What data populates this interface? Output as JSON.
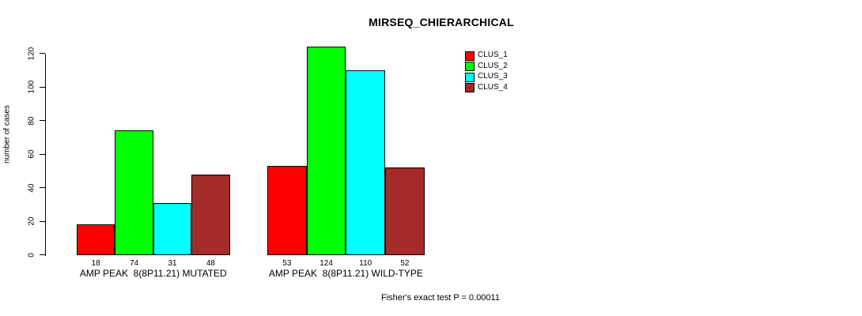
{
  "chart": {
    "title": "MIRSEQ_CHIERARCHICAL",
    "ylabel": "number of cases",
    "footnote": "Fisher's exact test P = 0.00011"
  },
  "chart_data": {
    "type": "bar",
    "title": "MIRSEQ_CHIERARCHICAL",
    "xlabel": "",
    "ylabel": "number of cases",
    "ylim": [
      0,
      120
    ],
    "yticks": [
      0,
      20,
      40,
      60,
      80,
      100,
      120
    ],
    "grid": false,
    "legend_position": "top-right",
    "categories": [
      "AMP PEAK  8(8P11.21) MUTATED",
      "AMP PEAK  8(8P11.21) WILD-TYPE"
    ],
    "series": [
      {
        "name": "CLUS_1",
        "color": "#FF0000",
        "values": [
          18,
          53
        ]
      },
      {
        "name": "CLUS_2",
        "color": "#00FF00",
        "values": [
          74,
          124
        ]
      },
      {
        "name": "CLUS_3",
        "color": "#00FFFF",
        "values": [
          31,
          110
        ]
      },
      {
        "name": "CLUS_4",
        "color": "#A52A2A",
        "values": [
          48,
          52
        ]
      }
    ],
    "bar_value_labels": [
      [
        18,
        74,
        31,
        48
      ],
      [
        53,
        124,
        110,
        52
      ]
    ],
    "annotation": "Fisher's exact test P = 0.00011"
  }
}
